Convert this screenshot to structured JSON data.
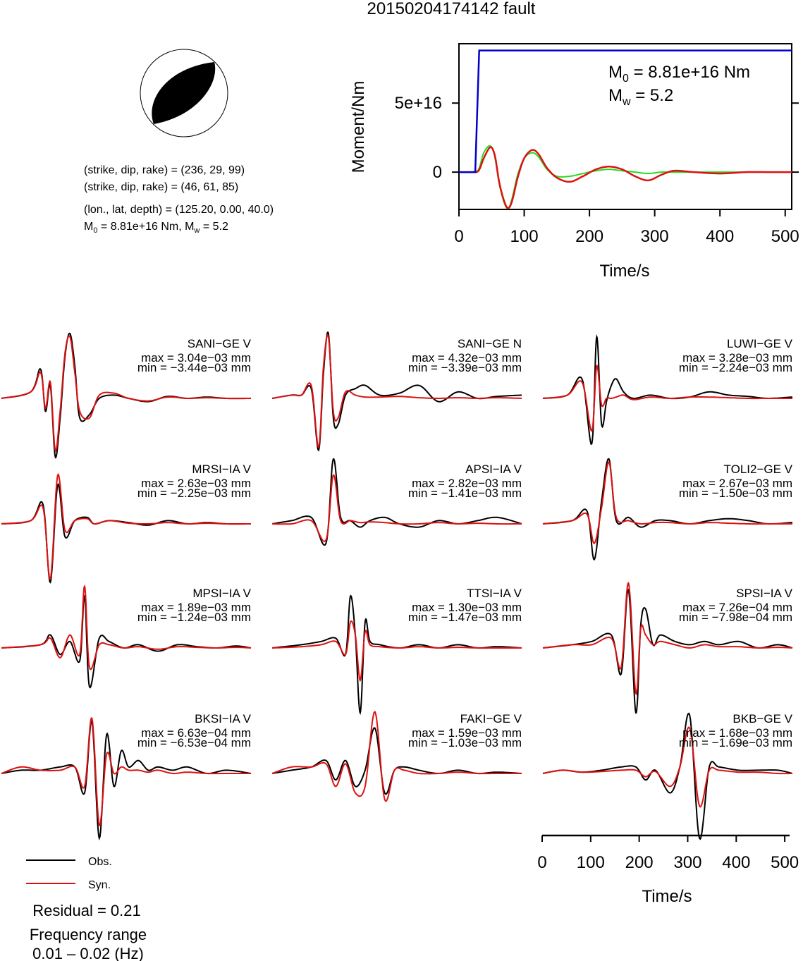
{
  "title": "20150204174142 fault",
  "colors": {
    "observed": "#000000",
    "synthetic": "#dd1111",
    "cumulative_moment": "#0000cc",
    "moment_rate_green": "#22dd22"
  },
  "mechanism": {
    "line1": "(strike, dip, rake) = (236, 29, 99)",
    "line2": "(strike, dip, rake) = (46, 61, 85)",
    "line3": "(lon., lat, depth) = (125.20, 0.00, 40.0)",
    "m0_label": "M",
    "m0_sub": "0",
    "m0_value": " = 8.81e+16 Nm, M",
    "mw_sub": "w",
    "mw_value": " = 5.2"
  },
  "moment_plot": {
    "ylabel": "Moment/Nm",
    "xlabel": "Time/s",
    "annot_m0_main": "M",
    "annot_m0_sub": "0",
    "annot_m0_val": " = 8.81e+16 Nm",
    "annot_mw_main": "M",
    "annot_mw_sub": "w",
    "annot_mw_val": " = 5.2"
  },
  "legend": {
    "obs": "Obs.",
    "syn": "Syn."
  },
  "residual": "Residual = 0.21",
  "freq_line1": "Frequency range",
  "freq_line2": "0.01 – 0.02 (Hz)",
  "waveform_axis": {
    "xlabel": "Time/s"
  },
  "chart_data": [
    {
      "type": "line",
      "name": "moment_time_function",
      "xlabel": "Time/s",
      "ylabel": "Moment/Nm",
      "xlim": [
        0,
        510
      ],
      "ylim": [
        -2.7e+16,
        9.3e+16
      ],
      "xticks": [
        0,
        100,
        200,
        300,
        400,
        500
      ],
      "xtick_labels": [
        "0",
        "100",
        "200",
        "300",
        "400",
        "500"
      ],
      "yticks": [
        0,
        5e+16
      ],
      "ytick_labels": [
        "0",
        "5e+16"
      ],
      "cumulative_moment": {
        "x": [
          0,
          25,
          31,
          510
        ],
        "y": [
          0,
          0,
          8.81e+16,
          8.81e+16
        ]
      },
      "moment_rate_observed": {
        "x": [
          0,
          20,
          30,
          38,
          48,
          55,
          62,
          70,
          76,
          82,
          90,
          100,
          112,
          122,
          135,
          150,
          170,
          190,
          210,
          230,
          250,
          270,
          290,
          310,
          330,
          360,
          400,
          440,
          480,
          510
        ],
        "y": [
          0,
          0,
          1000000000000000.0,
          1e+16,
          1.8e+16,
          1.2e+16,
          -8000000000000000.0,
          -2.2e+16,
          -2.6e+16,
          -2e+16,
          -4000000000000000.0,
          1e+16,
          1.6e+16,
          1.3e+16,
          3000000000000000.0,
          -4000000000000000.0,
          -7000000000000000.0,
          -3000000000000000.0,
          2000000000000000.0,
          4000000000000000.0,
          2000000000000000.0,
          -3000000000000000.0,
          -6000000000000000.0,
          -2000000000000000.0,
          1000000000000000.0,
          0,
          -1000000000000000.0,
          0,
          0,
          0
        ]
      },
      "moment_rate_synthetic": {
        "x": [
          0,
          20,
          30,
          38,
          48,
          55,
          62,
          70,
          76,
          82,
          90,
          100,
          112,
          122,
          135,
          150,
          170,
          190,
          210,
          230,
          250,
          270,
          290,
          310,
          330,
          360,
          400,
          440,
          480,
          510
        ],
        "y": [
          0,
          0,
          2000000000000000.0,
          1.4e+16,
          1.9e+16,
          1.1e+16,
          -9000000000000000.0,
          -2.3e+16,
          -2.6e+16,
          -1.8e+16,
          -2000000000000000.0,
          1e+16,
          1.4e+16,
          1.1e+16,
          2000000000000000.0,
          -3000000000000000.0,
          -3000000000000000.0,
          -1000000000000000.0,
          1000000000000000.0,
          2000000000000000.0,
          1000000000000000.0,
          0,
          -1000000000000000.0,
          0,
          0,
          0,
          0,
          0,
          0,
          0
        ]
      }
    },
    {
      "type": "line",
      "name": "waveform_fits",
      "xlabel": "Time/s",
      "xlim": [
        0,
        510
      ],
      "xticks": [
        0,
        100,
        200,
        300,
        400,
        500
      ],
      "xtick_labels": [
        "0",
        "100",
        "200",
        "300",
        "400",
        "500"
      ],
      "series_names": [
        "Obs.",
        "Syn."
      ],
      "stations": [
        {
          "label": "SANI−GE V",
          "max": "max = 3.04e−03 mm",
          "min": "min = −3.44e−03 mm",
          "max_val": 0.00304,
          "min_val": -0.00344,
          "t": [
            0,
            60,
            80,
            90,
            100,
            110,
            120,
            130,
            140,
            150,
            160,
            180,
            200,
            230,
            260,
            300,
            340,
            380,
            420,
            460,
            510
          ],
          "obs": [
            0,
            0.1,
            0.45,
            -0.2,
            0.2,
            -0.9,
            -0.3,
            0.65,
            1.0,
            0.5,
            -0.3,
            -0.25,
            0,
            0.05,
            0,
            -0.05,
            0.03,
            0,
            0.02,
            0,
            0
          ],
          "syn": [
            0,
            0.1,
            0.4,
            -0.15,
            0.25,
            -0.8,
            -0.2,
            0.7,
            0.95,
            0.4,
            -0.2,
            -0.3,
            0.05,
            0.08,
            0,
            -0.04,
            0.02,
            0,
            0.01,
            0,
            0
          ]
        },
        {
          "label": "SANI−GE N",
          "max": "max = 4.32e−03 mm",
          "min": "min = −3.39e−03 mm",
          "max_val": 0.00432,
          "min_val": -0.00339,
          "t": [
            0,
            40,
            60,
            80,
            95,
            105,
            115,
            125,
            135,
            150,
            170,
            190,
            220,
            260,
            300,
            340,
            380,
            420,
            460,
            510
          ],
          "obs": [
            0,
            0.05,
            0.05,
            0.15,
            -0.8,
            0.4,
            1.0,
            -0.3,
            -0.4,
            0.05,
            0.15,
            0.2,
            0.05,
            0.08,
            0.2,
            -0.05,
            0.1,
            0,
            0.03,
            0.05
          ],
          "syn": [
            0,
            0.05,
            0.05,
            0.2,
            -0.75,
            0.5,
            0.95,
            -0.2,
            -0.3,
            0.1,
            0.05,
            0.02,
            0.02,
            0.03,
            0.01,
            0,
            0.01,
            0,
            0.01,
            0
          ]
        },
        {
          "label": "LUWI−GE V",
          "max": "max = 3.28e−03 mm",
          "min": "min = −2.24e−03 mm",
          "max_val": 0.00328,
          "min_val": -0.00224,
          "t": [
            0,
            50,
            80,
            100,
            110,
            120,
            130,
            140,
            150,
            165,
            185,
            220,
            260,
            300,
            340,
            380,
            420,
            460,
            510
          ],
          "obs": [
            0,
            0.05,
            0.3,
            -0.7,
            0.95,
            -0.4,
            -0.05,
            0.2,
            0.3,
            0.1,
            0,
            0.05,
            0,
            0.02,
            0.1,
            0.05,
            0.03,
            0,
            0.02
          ],
          "syn": [
            0,
            0.05,
            0.25,
            -0.5,
            0.5,
            -0.1,
            0,
            0,
            0.02,
            0.05,
            -0.02,
            0.02,
            0,
            0.02,
            0.02,
            0.01,
            0,
            0,
            0
          ]
        },
        {
          "label": "MRSI−IA V",
          "max": "max = 2.63e−03 mm",
          "min": "min = −2.25e−03 mm",
          "max_val": 0.00263,
          "min_val": -0.00225,
          "t": [
            0,
            60,
            85,
            100,
            115,
            130,
            150,
            175,
            190,
            220,
            260,
            300,
            340,
            380,
            420,
            460,
            510
          ],
          "obs": [
            0,
            0.05,
            0.3,
            -0.9,
            0.6,
            -0.2,
            0.05,
            0.1,
            0,
            0.05,
            0.02,
            -0.02,
            0.05,
            0,
            0.02,
            0,
            0
          ],
          "syn": [
            0,
            0.05,
            0.25,
            -0.85,
            0.75,
            -0.1,
            0.05,
            0.08,
            0,
            0.05,
            0.01,
            0,
            0.02,
            0,
            0.01,
            0,
            0
          ]
        },
        {
          "label": "APSI−IA V",
          "max": "max = 2.82e−03 mm",
          "min": "min = −1.41e−03 mm",
          "max_val": 0.00282,
          "min_val": -0.00141,
          "t": [
            0,
            40,
            80,
            110,
            125,
            140,
            160,
            180,
            200,
            230,
            260,
            300,
            340,
            380,
            420,
            460,
            510
          ],
          "obs": [
            0,
            0.05,
            0.1,
            -0.3,
            1.0,
            0.1,
            0.05,
            -0.05,
            0.05,
            0.1,
            0,
            -0.05,
            0.05,
            0,
            0.05,
            0.1,
            0
          ],
          "syn": [
            0,
            0,
            0.05,
            -0.25,
            0.75,
            0.05,
            0.05,
            0.02,
            0.03,
            0.02,
            0,
            0,
            0.02,
            0,
            0.01,
            0,
            0
          ]
        },
        {
          "label": "TOLI2−GE V",
          "max": "max = 2.67e−03 mm",
          "min": "min = −1.50e−03 mm",
          "max_val": 0.00267,
          "min_val": -0.0015,
          "t": [
            0,
            60,
            90,
            105,
            120,
            135,
            150,
            175,
            200,
            230,
            260,
            300,
            340,
            380,
            420,
            460,
            510
          ],
          "obs": [
            0,
            0.05,
            0.2,
            -0.55,
            0.35,
            1.0,
            0.05,
            0.1,
            -0.05,
            0.05,
            0.05,
            0,
            0.05,
            0.08,
            0.05,
            0,
            0.02
          ],
          "syn": [
            0,
            0.05,
            0.15,
            -0.3,
            0.25,
            0.95,
            0.1,
            0.05,
            0,
            0.02,
            0.02,
            0,
            0.02,
            0.01,
            0,
            0,
            0
          ]
        },
        {
          "label": "MPSI−IA V",
          "max": "max = 1.89e−03 mm",
          "min": "min = −1.24e−03 mm",
          "max_val": 0.00189,
          "min_val": -0.00124,
          "t": [
            0,
            80,
            100,
            120,
            140,
            160,
            170,
            180,
            200,
            220,
            250,
            280,
            320,
            360,
            400,
            440,
            480,
            510
          ],
          "obs": [
            0,
            0.05,
            0.2,
            -0.1,
            0.1,
            -0.2,
            0.8,
            -0.6,
            0.15,
            0.1,
            0,
            0.05,
            -0.05,
            0.05,
            0.02,
            0,
            0.03,
            0
          ],
          "syn": [
            0,
            0.05,
            0.15,
            -0.15,
            0.2,
            -0.1,
            0.95,
            -0.3,
            0.05,
            0.05,
            0,
            0.02,
            -0.02,
            0.02,
            0.01,
            0,
            0.01,
            0
          ]
        },
        {
          "label": "TTSI−IA V",
          "max": "max = 1.30e−03 mm",
          "min": "min = −1.47e−03 mm",
          "max_val": 0.0013,
          "min_val": -0.00147,
          "t": [
            0,
            60,
            100,
            130,
            150,
            160,
            170,
            180,
            190,
            200,
            220,
            260,
            300,
            340,
            380,
            420,
            460,
            510
          ],
          "obs": [
            0,
            0.05,
            0.1,
            0.15,
            -0.1,
            0.8,
            0.2,
            -1.0,
            0.4,
            0.1,
            0.05,
            0,
            0.05,
            0,
            0.05,
            0,
            0.02,
            0
          ],
          "syn": [
            0,
            0.02,
            0.05,
            0.1,
            -0.1,
            0.4,
            0.2,
            -0.5,
            0.25,
            0.05,
            0.02,
            0,
            0.02,
            0,
            0.01,
            0,
            0,
            0
          ]
        },
        {
          "label": "SPSI−IA V",
          "max": "max = 7.26e−04 mm",
          "min": "min = −7.98e−04 mm",
          "max_val": 0.000726,
          "min_val": -0.000798,
          "t": [
            0,
            60,
            100,
            140,
            160,
            175,
            190,
            200,
            210,
            225,
            240,
            270,
            300,
            330,
            360,
            400,
            440,
            480,
            510
          ],
          "obs": [
            0,
            0.05,
            0.1,
            0.2,
            -0.4,
            0.9,
            -1.0,
            0.35,
            0.6,
            0.05,
            0.2,
            0.1,
            0.05,
            0.1,
            0.05,
            0.1,
            0,
            0.05,
            0
          ],
          "syn": [
            0,
            0.05,
            0.05,
            0.15,
            -0.3,
            1.0,
            -0.7,
            0.3,
            0.2,
            0.05,
            0.1,
            0.05,
            0,
            0.05,
            0.02,
            0.02,
            0,
            0.01,
            0
          ]
        },
        {
          "label": "BKSI−IA V",
          "max": "max = 6.63e−04 mm",
          "min": "min = −6.53e−04 mm",
          "max_val": 0.000663,
          "min_val": -0.000653,
          "t": [
            0,
            40,
            80,
            120,
            150,
            170,
            185,
            200,
            215,
            230,
            245,
            260,
            280,
            300,
            320,
            350,
            380,
            420,
            460,
            510
          ],
          "obs": [
            0,
            0.05,
            0.05,
            0.1,
            0.1,
            -0.3,
            0.8,
            -1.0,
            0.6,
            -0.2,
            0.35,
            0.1,
            0.2,
            0.05,
            0.1,
            0.05,
            0.1,
            0,
            0.05,
            0
          ],
          "syn": [
            0,
            0.1,
            0.05,
            0.05,
            0.1,
            -0.2,
            0.85,
            -0.8,
            0.3,
            0,
            0.1,
            0.05,
            0.05,
            0.02,
            0.05,
            0,
            0.02,
            0,
            0,
            0
          ]
        },
        {
          "label": "FAKI−GE V",
          "max": "max = 1.59e−03 mm",
          "min": "min = −1.03e−03 mm",
          "max_val": 0.00159,
          "min_val": -0.00103,
          "t": [
            0,
            40,
            80,
            110,
            130,
            150,
            170,
            190,
            210,
            230,
            250,
            270,
            300,
            340,
            380,
            420,
            460,
            510
          ],
          "obs": [
            0,
            0.05,
            0.1,
            0.2,
            -0.1,
            0.2,
            -0.2,
            0.05,
            0.7,
            -0.3,
            0.05,
            0.1,
            0.05,
            0,
            0.05,
            0,
            0.02,
            0
          ],
          "syn": [
            0,
            0.1,
            0.1,
            0.15,
            -0.2,
            0.15,
            -0.3,
            -0.2,
            0.95,
            -0.4,
            0.05,
            0.05,
            0,
            0,
            0.02,
            0,
            0,
            0
          ]
        },
        {
          "label": "BKB−GE V",
          "max": "max = 1.68e−03 mm",
          "min": "min = −1.69e−03 mm",
          "max_val": 0.00168,
          "min_val": -0.00169,
          "t": [
            0,
            40,
            80,
            120,
            160,
            190,
            210,
            230,
            260,
            280,
            300,
            320,
            340,
            360,
            400,
            440,
            480,
            510
          ],
          "obs": [
            0,
            0.05,
            0.02,
            0.05,
            0.1,
            0.1,
            -0.1,
            0.05,
            -0.3,
            0.1,
            0.9,
            -1.0,
            0.1,
            0.1,
            0.05,
            0.05,
            0.05,
            0
          ],
          "syn": [
            0,
            0.05,
            0.02,
            0.03,
            0.05,
            0.05,
            -0.05,
            0.03,
            -0.2,
            0.1,
            0.7,
            -0.5,
            0.05,
            0.05,
            0.02,
            0.02,
            0,
            0
          ]
        }
      ]
    }
  ]
}
